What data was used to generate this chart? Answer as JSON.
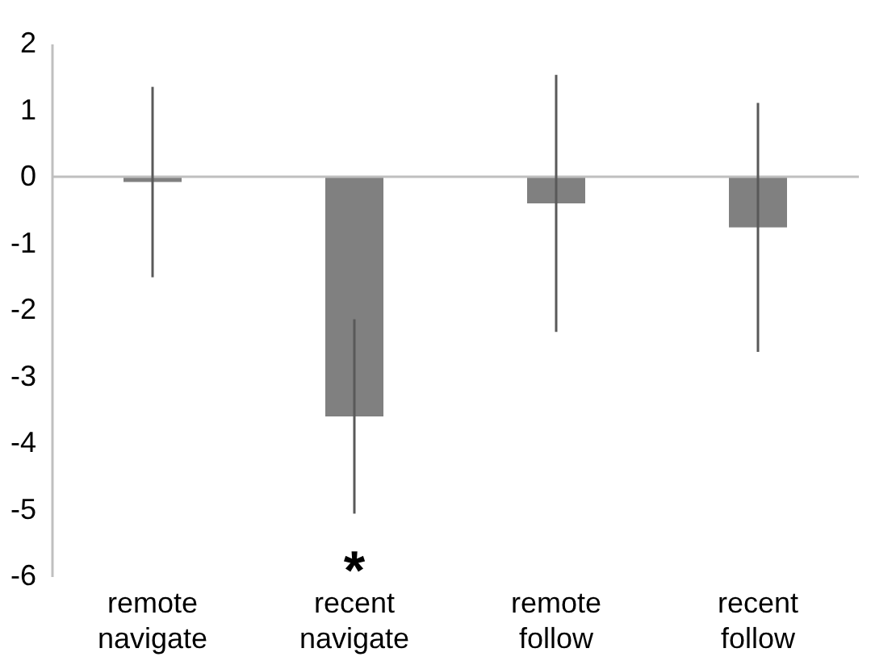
{
  "chart_data": {
    "type": "bar",
    "categories": [
      "remote navigate",
      "recent navigate",
      "remote follow",
      "recent follow"
    ],
    "values": [
      -0.08,
      -3.6,
      -0.4,
      -0.76
    ],
    "errors": [
      1.43,
      1.46,
      1.93,
      1.87
    ],
    "color": "#808080",
    "ylim": [
      -6,
      2
    ],
    "yticks": [
      -6,
      -5,
      -4,
      -3,
      -2,
      -1,
      0,
      1,
      2
    ],
    "grid": false,
    "ref_lines": [
      {
        "axis": "y",
        "value": 0,
        "color": "#bfbfbf"
      }
    ],
    "annotations": [
      "*"
    ]
  }
}
